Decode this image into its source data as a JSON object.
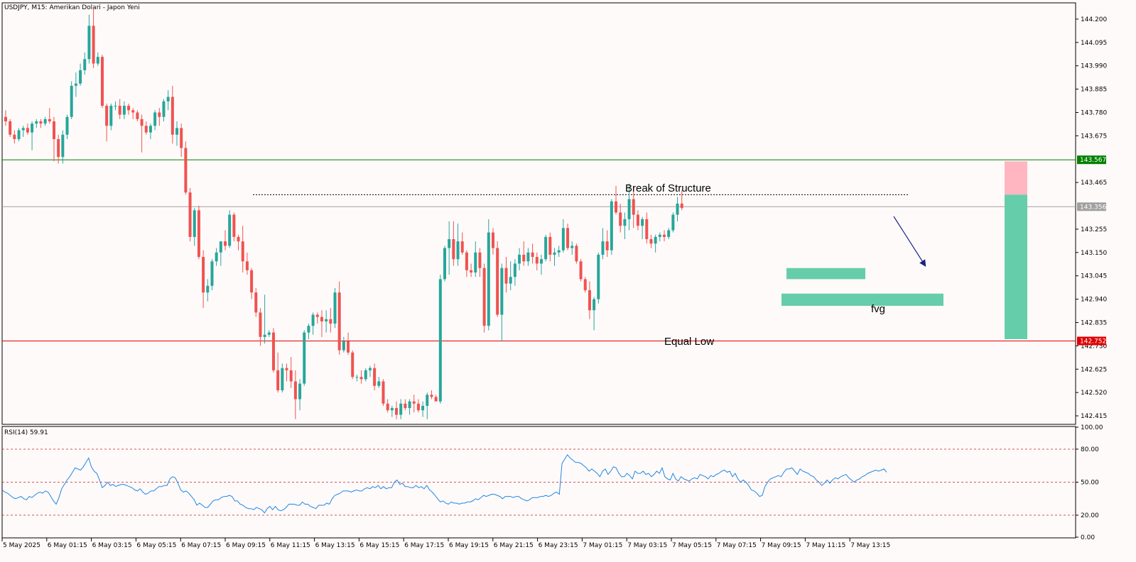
{
  "window": {
    "title": "USDJPY, M15:  Amerikan Dolari - Japon Yeni",
    "rsi_title": "RSI(14) 59.91"
  },
  "colors": {
    "background": "#fffafa",
    "bull": "#26a69a",
    "bear": "#ef5350",
    "resistance_line": "#008000",
    "support_line": "#e00000",
    "current_price": "#a0a0a0",
    "rsi_line": "#1e88e5",
    "target_zone": "#66cdaa",
    "stop_zone": "#ffb6c1",
    "fvg_zone": "#66cdaa",
    "arrow": "#1a237e"
  },
  "price_axis": {
    "ticks": [
      "144.200",
      "144.095",
      "143.990",
      "143.885",
      "143.780",
      "143.675",
      "143.465",
      "143.255",
      "143.150",
      "143.045",
      "142.940",
      "142.835",
      "142.730",
      "142.625",
      "142.520",
      "142.415"
    ],
    "tags": {
      "resistance": "143.567",
      "current": "143.356",
      "support": "142.752"
    }
  },
  "rsi_axis": {
    "ticks": [
      "100.00",
      "80.00",
      "50.00",
      "20.00",
      "0.00"
    ],
    "levels": [
      80,
      50,
      20
    ]
  },
  "time_axis": {
    "labels": [
      "5 May 2025",
      "6 May 01:15",
      "6 May 03:15",
      "6 May 05:15",
      "6 May 07:15",
      "6 May 09:15",
      "6 May 11:15",
      "6 May 13:15",
      "6 May 15:15",
      "6 May 17:15",
      "6 May 19:15",
      "6 May 21:15",
      "6 May 23:15",
      "7 May 01:15",
      "7 May 03:15",
      "7 May 05:15",
      "7 May 07:15",
      "7 May 09:15",
      "7 May 11:15",
      "7 May 13:15"
    ]
  },
  "annotations": {
    "bos": "Break of Structure",
    "equal_low": "Equal Low",
    "fvg": "fvg"
  },
  "chart_data": {
    "type": "candlestick",
    "symbol": "USDJPY",
    "timeframe": "M15",
    "ylim": [
      142.38,
      144.27
    ],
    "levels": {
      "resistance": 143.567,
      "current": 143.356,
      "support": 142.752,
      "bos": 143.41
    },
    "fvg_zones": [
      [
        143.03,
        143.08
      ],
      [
        142.91,
        142.965
      ]
    ],
    "position": {
      "entry": 143.41,
      "stop": 143.56,
      "target": 142.76
    },
    "candles": [
      [
        143.76,
        143.79,
        143.72,
        143.74
      ],
      [
        143.74,
        143.75,
        143.67,
        143.68
      ],
      [
        143.68,
        143.7,
        143.64,
        143.66
      ],
      [
        143.66,
        143.71,
        143.65,
        143.7
      ],
      [
        143.7,
        143.72,
        143.67,
        143.71
      ],
      [
        143.71,
        143.73,
        143.68,
        143.69
      ],
      [
        143.69,
        143.74,
        143.61,
        143.73
      ],
      [
        143.73,
        143.75,
        143.71,
        143.74
      ],
      [
        143.74,
        143.75,
        143.71,
        143.73
      ],
      [
        143.73,
        143.76,
        143.72,
        143.75
      ],
      [
        143.75,
        143.8,
        143.73,
        143.74
      ],
      [
        143.74,
        143.76,
        143.56,
        143.66
      ],
      [
        143.66,
        143.68,
        143.55,
        143.58
      ],
      [
        143.58,
        143.7,
        143.55,
        143.68
      ],
      [
        143.68,
        143.77,
        143.66,
        143.76
      ],
      [
        143.76,
        143.92,
        143.75,
        143.9
      ],
      [
        143.9,
        143.96,
        143.85,
        143.91
      ],
      [
        143.91,
        144.0,
        143.9,
        143.97
      ],
      [
        143.97,
        144.05,
        143.95,
        144.02
      ],
      [
        144.02,
        144.22,
        144.0,
        144.17
      ],
      [
        144.17,
        144.25,
        143.98,
        144.0
      ],
      [
        144.0,
        144.05,
        143.99,
        144.03
      ],
      [
        144.03,
        144.04,
        143.8,
        143.81
      ],
      [
        143.81,
        143.82,
        143.65,
        143.72
      ],
      [
        143.72,
        143.82,
        143.7,
        143.81
      ],
      [
        143.81,
        143.83,
        143.79,
        143.81
      ],
      [
        143.81,
        143.84,
        143.75,
        143.77
      ],
      [
        143.77,
        143.83,
        143.75,
        143.81
      ],
      [
        143.81,
        143.82,
        143.77,
        143.79
      ],
      [
        143.79,
        143.8,
        143.75,
        143.78
      ],
      [
        143.78,
        143.79,
        143.74,
        143.75
      ],
      [
        143.75,
        143.77,
        143.6,
        143.72
      ],
      [
        143.72,
        143.74,
        143.68,
        143.69
      ],
      [
        143.69,
        143.73,
        143.66,
        143.72
      ],
      [
        143.72,
        143.79,
        143.7,
        143.78
      ],
      [
        143.78,
        143.8,
        143.72,
        143.76
      ],
      [
        143.76,
        143.84,
        143.74,
        143.83
      ],
      [
        143.83,
        143.88,
        143.79,
        143.85
      ],
      [
        143.85,
        143.9,
        143.64,
        143.68
      ],
      [
        143.68,
        143.74,
        143.63,
        143.71
      ],
      [
        143.71,
        143.73,
        143.58,
        143.62
      ],
      [
        143.62,
        143.65,
        143.41,
        143.42
      ],
      [
        143.42,
        143.44,
        143.2,
        143.22
      ],
      [
        143.22,
        143.35,
        143.18,
        143.34
      ],
      [
        143.34,
        143.36,
        143.12,
        143.13
      ],
      [
        143.13,
        143.16,
        142.9,
        142.97
      ],
      [
        142.97,
        143.03,
        142.93,
        143.0
      ],
      [
        143.0,
        143.12,
        142.98,
        143.11
      ],
      [
        143.11,
        143.17,
        143.09,
        143.15
      ],
      [
        143.15,
        143.2,
        143.09,
        143.2
      ],
      [
        143.2,
        143.25,
        143.16,
        143.18
      ],
      [
        143.18,
        143.34,
        143.17,
        143.32
      ],
      [
        143.32,
        143.33,
        143.2,
        143.22
      ],
      [
        143.22,
        143.23,
        143.16,
        143.2
      ],
      [
        143.2,
        143.27,
        143.06,
        143.11
      ],
      [
        143.11,
        143.15,
        143.05,
        143.07
      ],
      [
        143.07,
        143.08,
        142.94,
        142.97
      ],
      [
        142.97,
        142.99,
        142.86,
        142.88
      ],
      [
        142.88,
        142.9,
        142.73,
        142.77
      ],
      [
        142.77,
        142.96,
        142.74,
        142.78
      ],
      [
        142.78,
        142.8,
        142.77,
        142.79
      ],
      [
        142.79,
        142.81,
        142.61,
        142.62
      ],
      [
        142.62,
        142.7,
        142.52,
        142.53
      ],
      [
        142.53,
        142.65,
        142.52,
        142.63
      ],
      [
        142.63,
        142.65,
        142.57,
        142.62
      ],
      [
        142.62,
        142.68,
        142.54,
        142.57
      ],
      [
        142.57,
        142.62,
        142.4,
        142.49
      ],
      [
        142.49,
        142.58,
        142.44,
        142.56
      ],
      [
        142.56,
        142.8,
        142.55,
        142.79
      ],
      [
        142.79,
        142.83,
        142.76,
        142.82
      ],
      [
        142.82,
        142.88,
        142.78,
        142.87
      ],
      [
        142.87,
        142.88,
        142.83,
        142.86
      ],
      [
        142.86,
        142.89,
        142.77,
        142.84
      ],
      [
        142.84,
        142.89,
        142.79,
        142.85
      ],
      [
        142.85,
        142.9,
        142.79,
        142.83
      ],
      [
        142.83,
        142.99,
        142.81,
        142.97
      ],
      [
        142.97,
        143.02,
        142.69,
        142.71
      ],
      [
        142.71,
        142.77,
        142.7,
        142.75
      ],
      [
        142.75,
        142.79,
        142.69,
        142.7
      ],
      [
        142.7,
        142.71,
        142.58,
        142.59
      ],
      [
        142.59,
        142.6,
        142.57,
        142.59
      ],
      [
        142.59,
        142.62,
        142.56,
        142.58
      ],
      [
        142.58,
        142.63,
        142.57,
        142.62
      ],
      [
        142.62,
        142.64,
        142.59,
        142.63
      ],
      [
        142.63,
        142.65,
        142.53,
        142.55
      ],
      [
        142.55,
        142.59,
        142.54,
        142.57
      ],
      [
        142.57,
        142.58,
        142.46,
        142.47
      ],
      [
        142.47,
        142.49,
        142.43,
        142.44
      ],
      [
        142.44,
        142.46,
        142.41,
        142.45
      ],
      [
        142.45,
        142.48,
        142.4,
        142.42
      ],
      [
        142.42,
        142.49,
        142.4,
        142.47
      ],
      [
        142.47,
        142.49,
        142.44,
        142.45
      ],
      [
        142.45,
        142.49,
        142.42,
        142.48
      ],
      [
        142.48,
        142.51,
        142.43,
        142.47
      ],
      [
        142.47,
        142.49,
        142.43,
        142.44
      ],
      [
        142.44,
        142.48,
        142.41,
        142.46
      ],
      [
        142.46,
        142.52,
        142.4,
        142.51
      ],
      [
        142.51,
        142.53,
        142.49,
        142.5
      ],
      [
        142.5,
        142.51,
        142.48,
        142.48
      ],
      [
        142.48,
        143.05,
        142.47,
        143.03
      ],
      [
        143.03,
        143.18,
        143.02,
        143.17
      ],
      [
        143.17,
        143.29,
        143.05,
        143.21
      ],
      [
        143.21,
        143.29,
        143.09,
        143.12
      ],
      [
        143.12,
        143.28,
        143.09,
        143.2
      ],
      [
        143.2,
        143.24,
        143.14,
        143.15
      ],
      [
        143.15,
        143.16,
        143.04,
        143.07
      ],
      [
        143.07,
        143.1,
        143.04,
        143.06
      ],
      [
        143.06,
        143.2,
        143.04,
        143.15
      ],
      [
        143.15,
        143.17,
        143.04,
        143.08
      ],
      [
        143.08,
        143.1,
        142.79,
        142.82
      ],
      [
        142.82,
        143.3,
        142.8,
        143.24
      ],
      [
        143.24,
        143.26,
        143.14,
        143.17
      ],
      [
        143.17,
        143.2,
        142.86,
        142.87
      ],
      [
        142.87,
        143.1,
        142.75,
        143.08
      ],
      [
        143.08,
        143.13,
        142.97,
        143.01
      ],
      [
        143.01,
        143.11,
        142.98,
        143.04
      ],
      [
        143.04,
        143.12,
        143.0,
        143.1
      ],
      [
        143.1,
        143.17,
        143.07,
        143.14
      ],
      [
        143.14,
        143.2,
        143.09,
        143.11
      ],
      [
        143.11,
        143.17,
        143.09,
        143.15
      ],
      [
        143.15,
        143.19,
        143.1,
        143.13
      ],
      [
        143.13,
        143.15,
        143.07,
        143.1
      ],
      [
        143.1,
        143.14,
        143.05,
        143.12
      ],
      [
        143.12,
        143.23,
        143.11,
        143.22
      ],
      [
        143.22,
        143.24,
        143.11,
        143.14
      ],
      [
        143.14,
        143.17,
        143.09,
        143.15
      ],
      [
        143.15,
        143.18,
        143.13,
        143.16
      ],
      [
        143.16,
        143.3,
        143.15,
        143.26
      ],
      [
        143.26,
        143.28,
        143.16,
        143.17
      ],
      [
        143.17,
        143.2,
        143.14,
        143.18
      ],
      [
        143.18,
        143.19,
        143.1,
        143.11
      ],
      [
        143.11,
        143.12,
        143.02,
        143.03
      ],
      [
        143.03,
        143.04,
        142.97,
        142.98
      ],
      [
        142.98,
        143.02,
        142.85,
        142.89
      ],
      [
        142.89,
        142.95,
        142.8,
        142.94
      ],
      [
        142.94,
        143.15,
        142.92,
        143.14
      ],
      [
        143.14,
        143.26,
        143.12,
        143.2
      ],
      [
        143.2,
        143.25,
        143.13,
        143.16
      ],
      [
        143.16,
        143.39,
        143.14,
        143.38
      ],
      [
        143.38,
        143.45,
        143.32,
        143.33
      ],
      [
        143.33,
        143.37,
        143.24,
        143.27
      ],
      [
        143.27,
        143.33,
        143.21,
        143.3
      ],
      [
        143.3,
        143.46,
        143.25,
        143.39
      ],
      [
        143.39,
        143.44,
        143.26,
        143.32
      ],
      [
        143.32,
        143.34,
        143.25,
        143.27
      ],
      [
        143.27,
        143.31,
        143.21,
        143.3
      ],
      [
        143.3,
        143.33,
        143.19,
        143.21
      ],
      [
        143.21,
        143.23,
        143.17,
        143.19
      ],
      [
        143.19,
        143.23,
        143.15,
        143.22
      ],
      [
        143.22,
        143.24,
        143.2,
        143.23
      ],
      [
        143.23,
        143.25,
        143.2,
        143.22
      ],
      [
        143.22,
        143.26,
        143.21,
        143.25
      ],
      [
        143.25,
        143.33,
        143.24,
        143.32
      ],
      [
        143.32,
        143.4,
        143.29,
        143.37
      ],
      [
        143.37,
        143.43,
        143.34,
        143.35
      ]
    ],
    "rsi": {
      "name": "RSI(14)",
      "last": 59.91,
      "ylim": [
        0,
        100
      ],
      "values": [
        43,
        41,
        40,
        38,
        36,
        35,
        36,
        37,
        35,
        34,
        37,
        36,
        38,
        40,
        41,
        40,
        42,
        41,
        37,
        33,
        30,
        36,
        44,
        48,
        52,
        55,
        59,
        63,
        62,
        61,
        64,
        68,
        72,
        64,
        60,
        58,
        52,
        45,
        47,
        50,
        47,
        48,
        46,
        47,
        48,
        48,
        47,
        46,
        45,
        43,
        42,
        44,
        41,
        39,
        40,
        42,
        42,
        44,
        46,
        46,
        47,
        47,
        53,
        55,
        54,
        49,
        43,
        41,
        42,
        40,
        37,
        34,
        29,
        31,
        29,
        27,
        27,
        30,
        33,
        34,
        34,
        36,
        37,
        37,
        38,
        37,
        33,
        33,
        30,
        29,
        27,
        26,
        26,
        25,
        27,
        26,
        25,
        22,
        26,
        28,
        25,
        28,
        25,
        24,
        25,
        27,
        30,
        30,
        30,
        29,
        29,
        32,
        30,
        30,
        28,
        27,
        26,
        29,
        29,
        29,
        31,
        30,
        35,
        38,
        39,
        40,
        42,
        42,
        42,
        41,
        42,
        43,
        42,
        42,
        44,
        45,
        44,
        46,
        45,
        47,
        44,
        46,
        44,
        45,
        45,
        50,
        52,
        48,
        49,
        46,
        46,
        45,
        45,
        47,
        45,
        46,
        44,
        47,
        43,
        41,
        38,
        35,
        32,
        33,
        31,
        30,
        32,
        31,
        31,
        30,
        31,
        31,
        32,
        32,
        33,
        35,
        34,
        36,
        38,
        37,
        38,
        39,
        39,
        38,
        37,
        35,
        37,
        37,
        37,
        36,
        37,
        37,
        35,
        34,
        33,
        34,
        36,
        36,
        36,
        37,
        37,
        38,
        37,
        38,
        40,
        41,
        39,
        67,
        71,
        75,
        72,
        70,
        68,
        68,
        67,
        65,
        63,
        60,
        62,
        60,
        58,
        55,
        60,
        62,
        57,
        60,
        64,
        63,
        58,
        55,
        55,
        58,
        56,
        53,
        60,
        58,
        58,
        60,
        57,
        58,
        55,
        57,
        60,
        58,
        63,
        55,
        53,
        52,
        58,
        53,
        51,
        55,
        53,
        52,
        51,
        53,
        54,
        53,
        57,
        56,
        55,
        53,
        56,
        55,
        57,
        58,
        60,
        61,
        59,
        60,
        55,
        58,
        53,
        50,
        52,
        50,
        47,
        43,
        42,
        40,
        37,
        38,
        46,
        50,
        53,
        54,
        55,
        56,
        55,
        59,
        62,
        62,
        63,
        60,
        57,
        62,
        60,
        59,
        58,
        56,
        55,
        52,
        50,
        47,
        49,
        52,
        49,
        52,
        54,
        53,
        55,
        56,
        57,
        54,
        52,
        50,
        52,
        53,
        55,
        56,
        58,
        59,
        60,
        61,
        60,
        61,
        62,
        59
      ]
    }
  }
}
